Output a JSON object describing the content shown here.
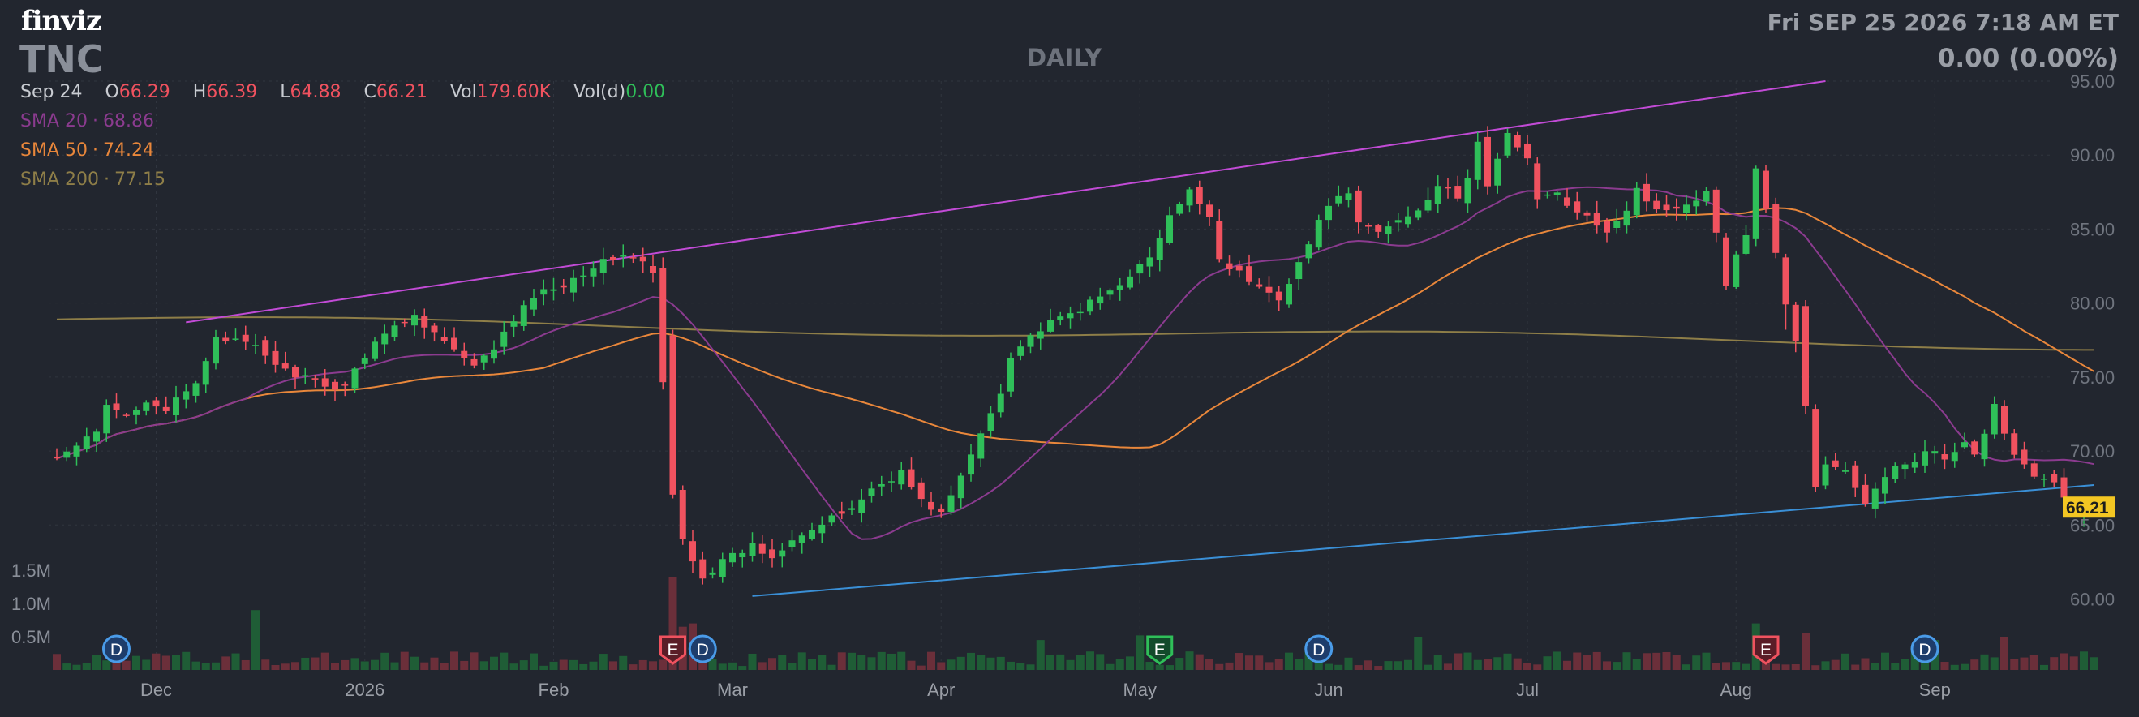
{
  "header": {
    "logo": "finviz",
    "ticker": "TNC",
    "period": "DAILY",
    "datetime": "Fri SEP 25 2026 7:18 AM ET",
    "change": "0.00 (0.00%)"
  },
  "ohlc": {
    "date": "Sep 24",
    "o_label": "O",
    "o": "66.29",
    "h_label": "H",
    "h": "66.39",
    "l_label": "L",
    "l": "64.88",
    "c_label": "C",
    "c": "66.21",
    "vol_label": "Vol",
    "vol": "179.60K",
    "vold_label": "Vol(d)",
    "vold": "0.00"
  },
  "indicators": {
    "sma20": {
      "label": "SMA 20",
      "value": "68.86",
      "color": "#8b3b8f"
    },
    "sma50": {
      "label": "SMA 50",
      "value": "74.24",
      "color": "#e9873b"
    },
    "sma200": {
      "label": "SMA 200",
      "value": "77.15",
      "color": "#8e7e48"
    }
  },
  "chart_data": {
    "type": "candlestick",
    "ylim": [
      58,
      95
    ],
    "y_ticks": [
      "95.00",
      "90.00",
      "85.00",
      "80.00",
      "75.00",
      "70.00",
      "65.00",
      "60.00"
    ],
    "volume_ticks": [
      "1.5M",
      "1.0M",
      "0.5M"
    ],
    "volume_tick_values": [
      1.5,
      1.0,
      0.5
    ],
    "x_labels": [
      {
        "label": "Dec",
        "day": 10
      },
      {
        "label": "2026",
        "day": 31
      },
      {
        "label": "Feb",
        "day": 50
      },
      {
        "label": "Mar",
        "day": 68
      },
      {
        "label": "Apr",
        "day": 89
      },
      {
        "label": "May",
        "day": 109
      },
      {
        "label": "Jun",
        "day": 128
      },
      {
        "label": "Jul",
        "day": 148
      },
      {
        "label": "Aug",
        "day": 169
      },
      {
        "label": "Sep",
        "day": 189
      }
    ],
    "last_price": "66.21",
    "start_price": 69.5,
    "anchors": [
      [
        0,
        69.5
      ],
      [
        4,
        71.2
      ],
      [
        5,
        73.0
      ],
      [
        7,
        72.4
      ],
      [
        9,
        73.5
      ],
      [
        11,
        72.8
      ],
      [
        14,
        74.5
      ],
      [
        16,
        77.8
      ],
      [
        20,
        77.0
      ],
      [
        23,
        75.4
      ],
      [
        25,
        75.0
      ],
      [
        27,
        74.2
      ],
      [
        29,
        74.5
      ],
      [
        32,
        77.5
      ],
      [
        36,
        79.2
      ],
      [
        38,
        78.0
      ],
      [
        40,
        76.8
      ],
      [
        42,
        75.6
      ],
      [
        44,
        77.0
      ],
      [
        46,
        78.8
      ],
      [
        48,
        80.5
      ],
      [
        51,
        81.3
      ],
      [
        54,
        82.5
      ],
      [
        57,
        83.3
      ],
      [
        59,
        82.7
      ],
      [
        60,
        82.0
      ],
      [
        62,
        67.0
      ],
      [
        63,
        64.0
      ],
      [
        65,
        61.5
      ],
      [
        67,
        62.5
      ],
      [
        70,
        63.6
      ],
      [
        72,
        62.8
      ],
      [
        74,
        64.2
      ],
      [
        77,
        65.0
      ],
      [
        80,
        66.2
      ],
      [
        82,
        67.4
      ],
      [
        85,
        68.6
      ],
      [
        87,
        66.6
      ],
      [
        89,
        65.8
      ],
      [
        91,
        68.2
      ],
      [
        93,
        71.2
      ],
      [
        95,
        74.0
      ],
      [
        96,
        76.5
      ],
      [
        98,
        77.8
      ],
      [
        100,
        78.6
      ],
      [
        103,
        79.6
      ],
      [
        106,
        80.8
      ],
      [
        108,
        82.0
      ],
      [
        110,
        83.0
      ],
      [
        112,
        85.8
      ],
      [
        114,
        87.5
      ],
      [
        116,
        86.0
      ],
      [
        117,
        83.0
      ],
      [
        119,
        82.0
      ],
      [
        121,
        81.0
      ],
      [
        123,
        80.4
      ],
      [
        124,
        81.5
      ],
      [
        126,
        84.0
      ],
      [
        128,
        86.8
      ],
      [
        130,
        87.2
      ],
      [
        131,
        85.4
      ],
      [
        133,
        84.8
      ],
      [
        135,
        85.6
      ],
      [
        137,
        86.4
      ],
      [
        139,
        88.0
      ],
      [
        141,
        87.0
      ],
      [
        142,
        88.6
      ],
      [
        143,
        90.8
      ],
      [
        144,
        88.0
      ],
      [
        146,
        91.3
      ],
      [
        148,
        90.0
      ],
      [
        149,
        87.0
      ],
      [
        151,
        87.4
      ],
      [
        153,
        86.0
      ],
      [
        155,
        85.4
      ],
      [
        156,
        85.0
      ],
      [
        158,
        86.4
      ],
      [
        159,
        87.8
      ],
      [
        161,
        86.2
      ],
      [
        163,
        86.6
      ],
      [
        165,
        87.0
      ],
      [
        166,
        87.8
      ],
      [
        167,
        84.6
      ],
      [
        168,
        81.4
      ],
      [
        170,
        84.8
      ],
      [
        171,
        89.0
      ],
      [
        172,
        86.5
      ],
      [
        174,
        80.0
      ],
      [
        175,
        77.5
      ],
      [
        176,
        73.0
      ],
      [
        177,
        67.6
      ],
      [
        178,
        69.0
      ],
      [
        180,
        68.6
      ],
      [
        182,
        66.5
      ],
      [
        183,
        67.4
      ],
      [
        185,
        68.8
      ],
      [
        187,
        69.5
      ],
      [
        188,
        70.2
      ],
      [
        190,
        69.4
      ],
      [
        192,
        70.4
      ],
      [
        193,
        69.6
      ],
      [
        194,
        71.0
      ],
      [
        195,
        73.0
      ],
      [
        196,
        71.4
      ],
      [
        197,
        69.8
      ],
      [
        199,
        68.5
      ],
      [
        201,
        67.8
      ],
      [
        202,
        66.8
      ],
      [
        203,
        66.0
      ],
      [
        204,
        66.29
      ],
      [
        205,
        66.21
      ]
    ],
    "vol_spikes": [
      [
        20,
        0.9
      ],
      [
        62,
        1.4
      ],
      [
        63,
        0.65
      ],
      [
        64,
        0.7
      ],
      [
        99,
        0.45
      ],
      [
        109,
        0.52
      ],
      [
        137,
        0.5
      ],
      [
        171,
        0.7
      ],
      [
        176,
        0.55
      ],
      [
        189,
        0.45
      ],
      [
        196,
        0.5
      ]
    ],
    "earnings_days": [
      62,
      111,
      172
    ],
    "dividend_days": [
      6,
      65,
      127,
      188
    ],
    "trendlines": [
      {
        "color": "#c24bd6",
        "from": [
          13,
          78.7
        ],
        "to": [
          178,
          95.0
        ]
      },
      {
        "color": "#3a8fd6",
        "from": [
          70,
          60.2
        ],
        "to": [
          205,
          67.7
        ]
      }
    ],
    "colors": {
      "up": "#2fbf59",
      "down": "#f0525f",
      "vol_up": "#1f5d36",
      "vol_down": "#6b2f3a",
      "sma20": "#8b3b8f",
      "sma50": "#e9873b",
      "sma200": "#8e7e48",
      "grid": "#30353f",
      "axis_text": "#6f747e",
      "last_price_bg": "#f3c623"
    }
  }
}
